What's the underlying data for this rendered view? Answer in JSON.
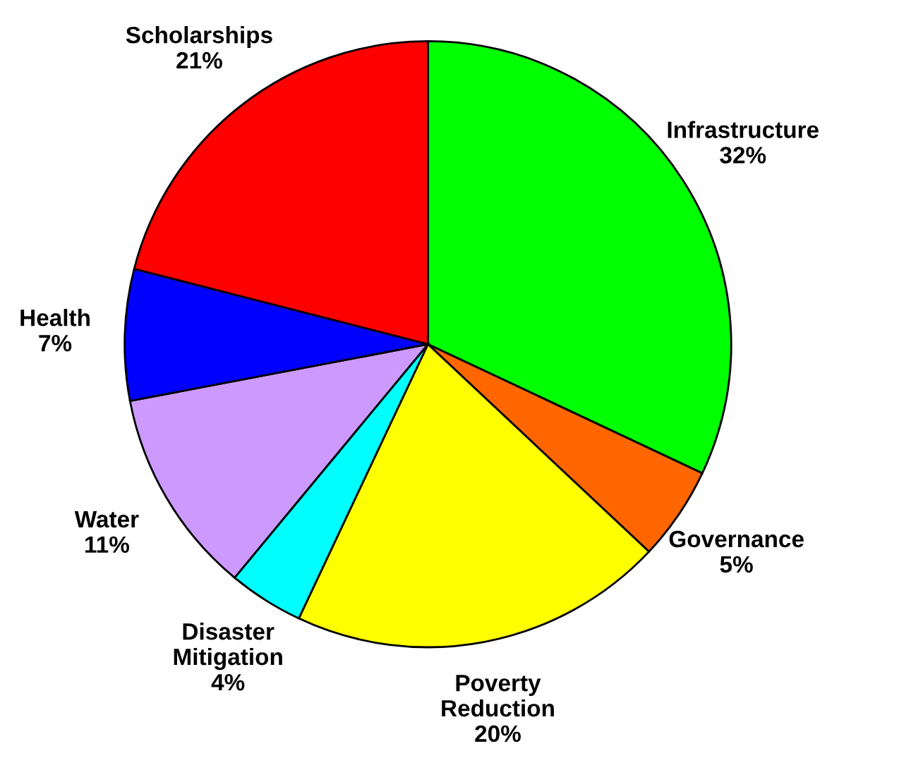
{
  "chart_data": {
    "type": "pie",
    "categories": [
      "Infrastructure",
      "Governance",
      "Poverty Reduction",
      "Disaster Mitigation",
      "Water",
      "Health",
      "Scholarships"
    ],
    "values": [
      32,
      5,
      20,
      4,
      11,
      7,
      21
    ],
    "value_labels": [
      "32%",
      "5%",
      "20%",
      "4%",
      "11%",
      "7%",
      "21%"
    ],
    "colors": [
      "#00ff00",
      "#ff6600",
      "#ffff00",
      "#00ffff",
      "#cc99ff",
      "#0000ff",
      "#ff0000"
    ]
  }
}
